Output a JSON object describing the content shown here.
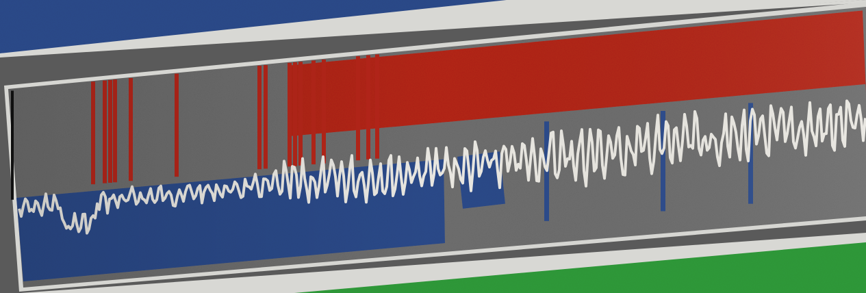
{
  "scene": {
    "kind": "tilted signal strips",
    "colors": {
      "background": "#5a5a5a",
      "frame": "#d8d8d4",
      "strip_gray": "#6e6e6e",
      "blue": "#2b4a8a",
      "red": "#b32519",
      "green": "#2f9a3a",
      "trace": "#e8e6e0",
      "tick": "#111111"
    },
    "strips": [
      {
        "name": "top-blue-strip",
        "fill": "blue"
      },
      {
        "name": "middle-signal-strip",
        "fill": "mixed-red-blue"
      },
      {
        "name": "bottom-green-strip",
        "fill": "green"
      }
    ],
    "markers": [
      {
        "color": "blue",
        "count": 3
      },
      {
        "color": "red",
        "count": 12
      }
    ]
  }
}
